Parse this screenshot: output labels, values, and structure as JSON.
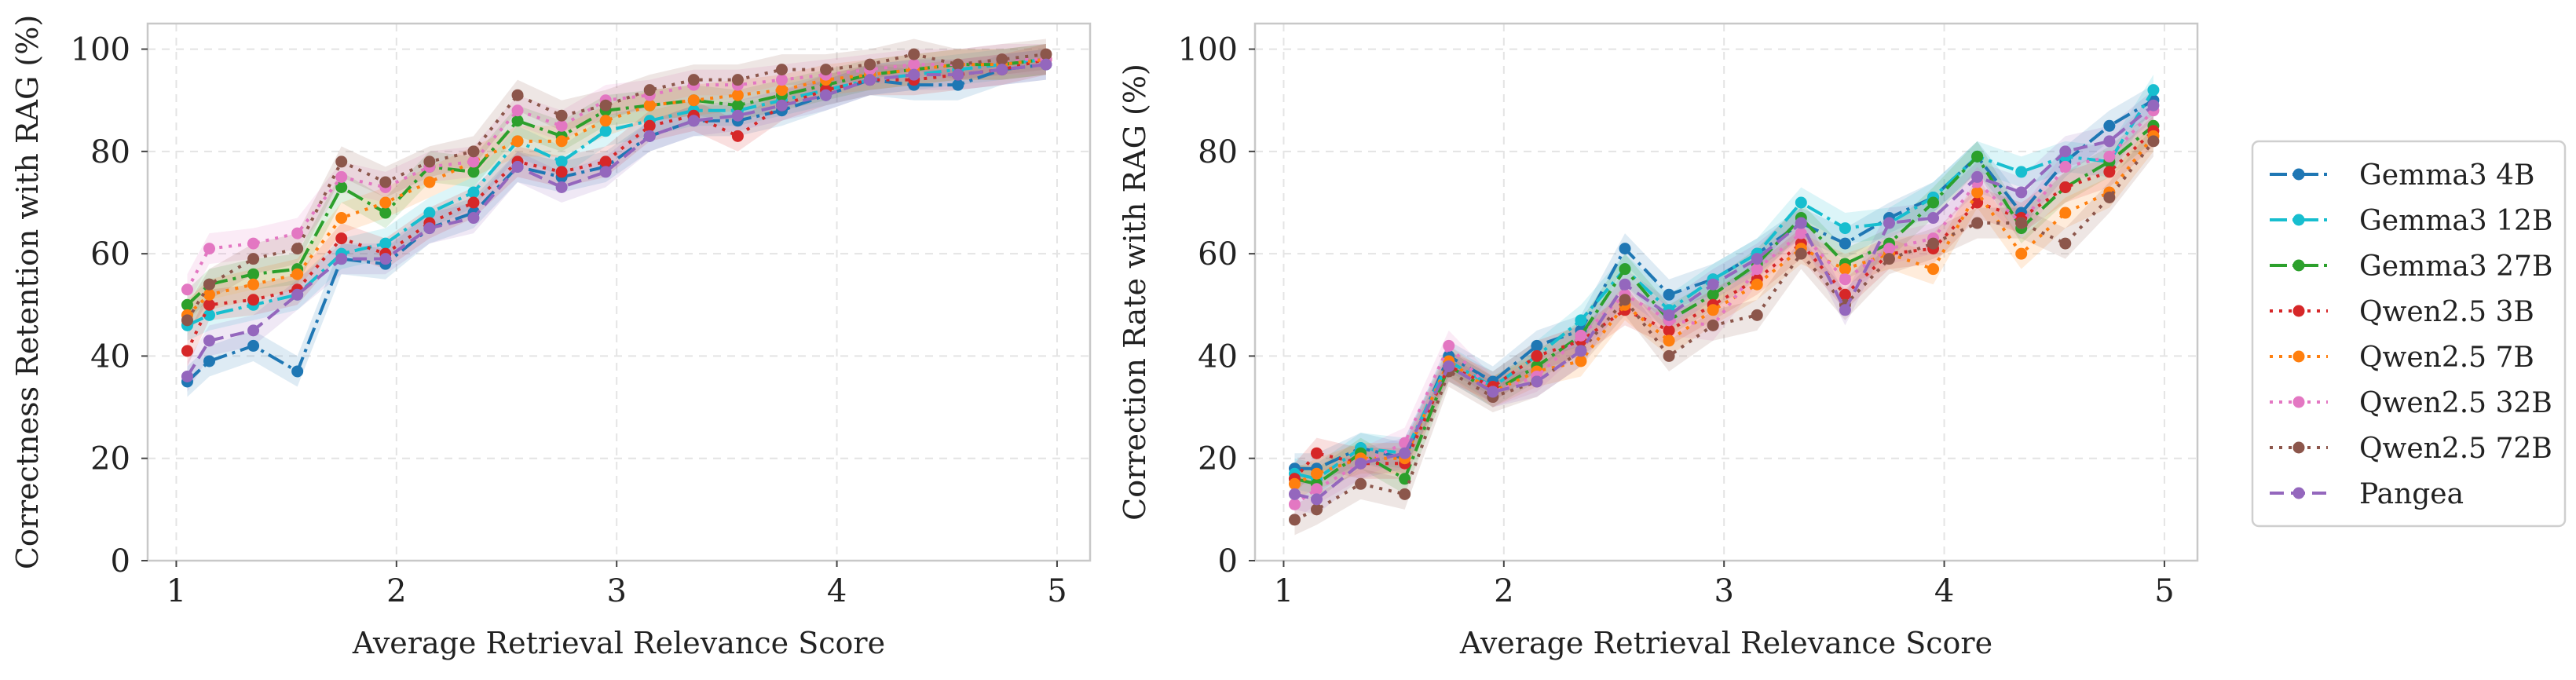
{
  "chart_data": [
    {
      "type": "line",
      "title": "",
      "xlabel": "Average Retrieval Relevance Score",
      "ylabel": "Correctness Retention with RAG (%)",
      "xlim": [
        0.87,
        5.15
      ],
      "ylim": [
        0,
        105
      ],
      "xticks": [
        1,
        2,
        3,
        4,
        5
      ],
      "yticks": [
        0,
        20,
        40,
        60,
        80,
        100
      ],
      "grid": true,
      "x": [
        1.05,
        1.15,
        1.35,
        1.55,
        1.75,
        1.95,
        2.15,
        2.35,
        2.55,
        2.75,
        2.95,
        3.15,
        3.35,
        3.55,
        3.75,
        3.95,
        4.15,
        4.35,
        4.55,
        4.75,
        4.95
      ],
      "series": [
        {
          "name": "Gemma3 4B",
          "values": [
            35,
            39,
            42,
            37,
            59,
            58,
            65,
            68,
            77,
            75,
            77,
            83,
            86,
            86,
            88,
            91,
            94,
            93,
            93,
            96,
            97
          ]
        },
        {
          "name": "Gemma3 12B",
          "values": [
            46,
            48,
            50,
            52,
            60,
            62,
            68,
            72,
            82,
            78,
            84,
            86,
            88,
            88,
            90,
            92,
            94,
            95,
            96,
            97,
            98
          ]
        },
        {
          "name": "Gemma3 27B",
          "values": [
            50,
            54,
            56,
            57,
            73,
            68,
            77,
            76,
            86,
            83,
            88,
            89,
            90,
            89,
            91,
            93,
            95,
            96,
            97,
            97,
            98
          ]
        },
        {
          "name": "Qwen2.5 3B",
          "values": [
            41,
            50,
            51,
            53,
            63,
            60,
            66,
            70,
            78,
            76,
            78,
            85,
            87,
            83,
            89,
            92,
            94,
            94,
            95,
            96,
            98
          ]
        },
        {
          "name": "Qwen2.5 7B",
          "values": [
            48,
            52,
            54,
            56,
            67,
            70,
            74,
            78,
            82,
            82,
            86,
            89,
            90,
            91,
            92,
            94,
            95,
            96,
            97,
            97,
            98
          ]
        },
        {
          "name": "Qwen2.5 32B",
          "values": [
            53,
            61,
            62,
            64,
            75,
            73,
            77,
            78,
            88,
            85,
            90,
            91,
            93,
            93,
            94,
            95,
            96,
            97,
            97,
            98,
            98
          ]
        },
        {
          "name": "Qwen2.5 72B",
          "values": [
            47,
            54,
            59,
            61,
            78,
            74,
            78,
            80,
            91,
            87,
            89,
            92,
            94,
            94,
            96,
            96,
            97,
            99,
            97,
            98,
            99
          ]
        },
        {
          "name": "Pangea",
          "values": [
            36,
            43,
            45,
            52,
            59,
            59,
            65,
            67,
            77,
            73,
            76,
            83,
            86,
            87,
            89,
            91,
            94,
            95,
            95,
            96,
            97
          ]
        }
      ]
    },
    {
      "type": "line",
      "title": "",
      "xlabel": "Average Retrieval Relevance Score",
      "ylabel": "Correction Rate with RAG (%)",
      "xlim": [
        0.87,
        5.15
      ],
      "ylim": [
        0,
        105
      ],
      "xticks": [
        1,
        2,
        3,
        4,
        5
      ],
      "yticks": [
        0,
        20,
        40,
        60,
        80,
        100
      ],
      "grid": true,
      "x": [
        1.05,
        1.15,
        1.35,
        1.55,
        1.75,
        1.95,
        2.15,
        2.35,
        2.55,
        2.75,
        2.95,
        3.15,
        3.35,
        3.55,
        3.75,
        3.95,
        4.15,
        4.35,
        4.55,
        4.75,
        4.95
      ],
      "series": [
        {
          "name": "Gemma3 4B",
          "values": [
            18,
            18,
            22,
            20,
            40,
            35,
            42,
            45,
            61,
            52,
            55,
            60,
            66,
            62,
            67,
            71,
            79,
            68,
            78,
            85,
            90
          ]
        },
        {
          "name": "Gemma3 12B",
          "values": [
            17,
            16,
            22,
            21,
            39,
            34,
            40,
            47,
            57,
            49,
            55,
            60,
            70,
            65,
            66,
            71,
            79,
            76,
            79,
            78,
            92
          ]
        },
        {
          "name": "Gemma3 27B",
          "values": [
            16,
            15,
            21,
            16,
            38,
            33,
            38,
            44,
            57,
            47,
            52,
            58,
            67,
            58,
            62,
            70,
            79,
            65,
            73,
            78,
            85
          ]
        },
        {
          "name": "Qwen2.5 3B",
          "values": [
            16,
            21,
            19,
            19,
            38,
            34,
            40,
            43,
            49,
            45,
            50,
            55,
            62,
            52,
            60,
            61,
            70,
            67,
            73,
            76,
            84
          ]
        },
        {
          "name": "Qwen2.5 7B",
          "values": [
            15,
            17,
            20,
            20,
            39,
            33,
            37,
            39,
            50,
            43,
            49,
            54,
            61,
            57,
            60,
            57,
            72,
            60,
            68,
            72,
            83
          ]
        },
        {
          "name": "Qwen2.5 32B",
          "values": [
            11,
            14,
            19,
            23,
            42,
            33,
            36,
            44,
            52,
            47,
            46,
            57,
            64,
            55,
            61,
            63,
            74,
            66,
            77,
            79,
            88
          ]
        },
        {
          "name": "Qwen2.5 72B",
          "values": [
            8,
            10,
            15,
            13,
            37,
            32,
            35,
            41,
            51,
            40,
            46,
            48,
            60,
            50,
            59,
            62,
            66,
            66,
            62,
            71,
            82
          ]
        },
        {
          "name": "Pangea",
          "values": [
            13,
            12,
            19,
            21,
            38,
            33,
            35,
            41,
            54,
            48,
            54,
            59,
            66,
            49,
            66,
            67,
            75,
            72,
            80,
            82,
            89
          ]
        }
      ]
    }
  ],
  "legend": {
    "placement": "right",
    "entries": [
      {
        "name": "Gemma3 4B",
        "color": "#1f77b4",
        "dash": "dashdot"
      },
      {
        "name": "Gemma3 12B",
        "color": "#17becf",
        "dash": "dashdot"
      },
      {
        "name": "Gemma3 27B",
        "color": "#2ca02c",
        "dash": "dashdot"
      },
      {
        "name": "Qwen2.5 3B",
        "color": "#d62728",
        "dash": "dotted"
      },
      {
        "name": "Qwen2.5 7B",
        "color": "#ff7f0e",
        "dash": "dotted"
      },
      {
        "name": "Qwen2.5 32B",
        "color": "#e377c2",
        "dash": "dotted"
      },
      {
        "name": "Qwen2.5 72B",
        "color": "#8c564b",
        "dash": "dotted"
      },
      {
        "name": "Pangea",
        "color": "#9467bd",
        "dash": "dashed"
      }
    ]
  }
}
